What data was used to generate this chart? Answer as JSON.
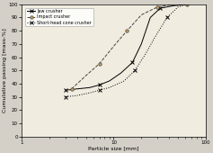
{
  "title": "",
  "xlabel": "Particle size [mm]",
  "ylabel": "Cumulative passing [mass-%]",
  "xlim": [
    1,
    100
  ],
  "ylim": [
    0,
    100
  ],
  "xticks": [
    1,
    10,
    100
  ],
  "ytick_vals": [
    0,
    10,
    20,
    30,
    40,
    50,
    60,
    70,
    80,
    90,
    100
  ],
  "legend": [
    "Jaw crusher",
    "Impact crusher",
    "Short-head cone crusher"
  ],
  "jaw_x": [
    3.0,
    4.0,
    5.5,
    7.0,
    9.0,
    12.0,
    16.0,
    20.0,
    25.0,
    32.0,
    45.0,
    63.0
  ],
  "jaw_y": [
    35,
    36,
    37,
    39,
    42,
    48,
    56,
    70,
    90,
    97,
    99,
    100
  ],
  "impact_x": [
    3.5,
    5.0,
    7.0,
    10.5,
    14.0,
    20.0,
    30.0,
    45.0,
    63.0
  ],
  "impact_y": [
    36,
    46,
    55,
    70,
    80,
    92,
    98,
    100,
    100
  ],
  "shcone_x": [
    3.0,
    4.0,
    5.5,
    7.0,
    9.0,
    13.0,
    17.0,
    22.0,
    28.0,
    38.0,
    50.0,
    63.0
  ],
  "shcone_y": [
    30,
    31,
    33,
    35,
    37,
    42,
    50,
    62,
    75,
    90,
    98,
    100
  ],
  "jaw_color": "#000000",
  "impact_color": "#444444",
  "shcone_color": "#000000",
  "bg_color": "#d4d0c8",
  "plot_bg": "#f0ece0"
}
